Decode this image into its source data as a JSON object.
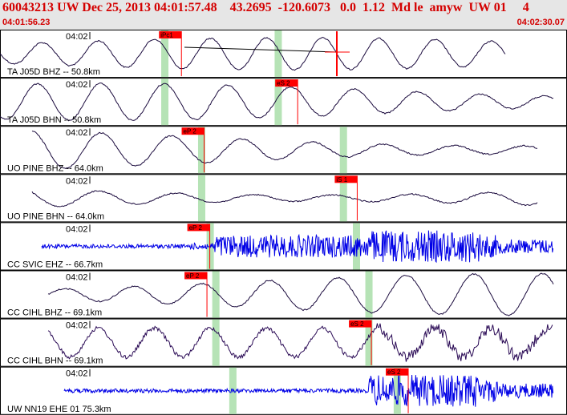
{
  "header": {
    "title": "60043213 UW Dec 25, 2013 04:01:57.48    43.2695  -120.6073   0.0  1.12  Md le  amyw  UW 01     4",
    "time_start": "04:01:56.23",
    "time_end": "04:02:30.07"
  },
  "colors": {
    "header_bg": "#e6e6e6",
    "header_text": "#d40000",
    "pick_flag": "#ff0000",
    "pick_window": "#b6e3b6",
    "trace_low": "#1a0a3d",
    "trace_broadband": "#0000e6",
    "trace_mixed": "#2a0a55",
    "panel_border": "#000000"
  },
  "traces": [
    {
      "station_label": "TA J05D BHZ -- 50.8km",
      "tick_label": "04:02",
      "type": "low",
      "pick": "iPc1",
      "pick_frac": 0.32,
      "windows": [
        0.29,
        0.49
      ],
      "extra_pick": "cursor"
    },
    {
      "station_label": "TA J05D BHN -- 50.8km",
      "tick_label": "04:02",
      "type": "low",
      "pick": "eS 2",
      "pick_frac": 0.525,
      "windows": [
        0.29,
        0.49
      ]
    },
    {
      "station_label": "UO PINE BHZ -- 64.0km",
      "tick_label": "04:02",
      "type": "low",
      "pick": "eP 2",
      "pick_frac": 0.36,
      "windows": [
        0.355,
        0.605
      ]
    },
    {
      "station_label": "UO PINE BHN -- 64.0km",
      "tick_label": "04:02",
      "type": "low",
      "pick": "iS 1",
      "pick_frac": 0.63,
      "windows": [
        0.355,
        0.605
      ]
    },
    {
      "station_label": "CC SVIC EHZ -- 66.7km",
      "tick_label": "04:02",
      "type": "broadband",
      "pick": "eP 2",
      "pick_frac": 0.37,
      "windows": [
        0.37,
        0.628
      ]
    },
    {
      "station_label": "CC CIHL BHZ -- 69.1km",
      "tick_label": "04:02",
      "type": "low",
      "pick": "eP 2",
      "pick_frac": 0.365,
      "windows": [
        0.38,
        0.65
      ]
    },
    {
      "station_label": "CC CIHL BHN -- 69.1km",
      "tick_label": "04:02",
      "type": "mixed",
      "pick": "eS 2",
      "pick_frac": 0.655,
      "windows": [
        0.38,
        0.65
      ]
    },
    {
      "station_label": "UW NN19 EHE 01 75.3km",
      "tick_label": "04:02",
      "type": "broadband",
      "pick": "eS 2",
      "pick_frac": 0.72,
      "windows": [
        0.41,
        0.7
      ]
    }
  ]
}
